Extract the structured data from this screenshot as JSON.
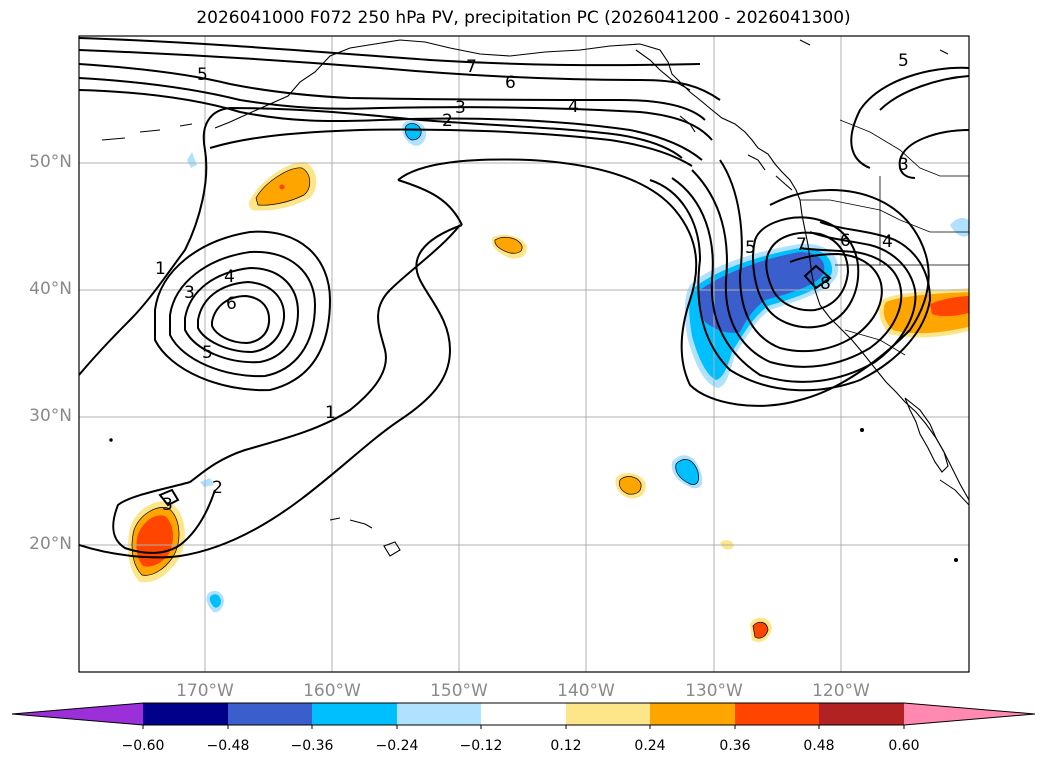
{
  "title": "2026041000 F072 250 hPa PV, precipitation PC (2026041200 - 2026041300)",
  "colors": {
    "neg_extend": "#9b30d9",
    "neg_060": "#00008b",
    "neg_048": "#3a5fcd",
    "neg_036": "#00bfff",
    "neg_024": "#b0e2ff",
    "neutral": "#ffffff",
    "pos_012": "#fde68a",
    "pos_024": "#ffa500",
    "pos_036": "#ff4500",
    "pos_048": "#b22222",
    "pos_extend": "#ff89b0"
  },
  "latitude_labels": [
    "50°N",
    "40°N",
    "30°N",
    "20°N"
  ],
  "longitude_labels": [
    "170°W",
    "160°W",
    "150°W",
    "140°W",
    "130°W",
    "120°W"
  ],
  "colorbar_ticks": [
    "−0.60",
    "−0.48",
    "−0.36",
    "−0.24",
    "−0.12",
    "0.12",
    "0.24",
    "0.36",
    "0.48",
    "0.60"
  ],
  "contour_labels": {
    "c1a": "1",
    "c1b": "1",
    "c2a": "2",
    "c2b": "2",
    "c3a": "3",
    "c3b": "3",
    "c3c": "3",
    "c3d": "3",
    "c4a": "4",
    "c4b": "4",
    "c4c": "4",
    "c5a": "5",
    "c5b": "5",
    "c5c": "5",
    "c5d": "5",
    "c6a": "6",
    "c6b": "6",
    "c6c": "6",
    "c7a": "7",
    "c7b": "7",
    "c8a": "8"
  }
}
